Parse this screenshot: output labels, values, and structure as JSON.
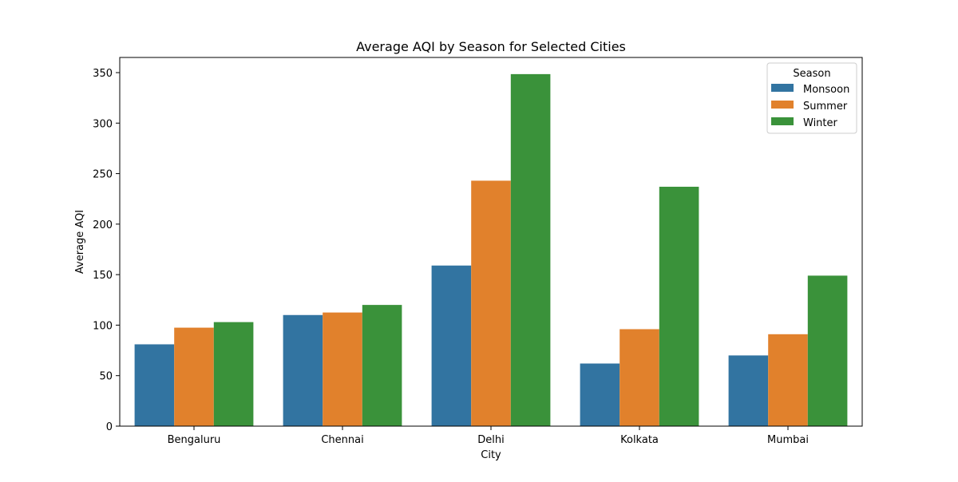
{
  "chart_data": {
    "type": "bar",
    "title": "Average AQI by Season for Selected Cities",
    "xlabel": "City",
    "ylabel": "Average AQI",
    "categories": [
      "Bengaluru",
      "Chennai",
      "Delhi",
      "Kolkata",
      "Mumbai"
    ],
    "series": [
      {
        "name": "Monsoon",
        "color": "#3274a1",
        "values": [
          81,
          110,
          159,
          62,
          70
        ]
      },
      {
        "name": "Summer",
        "color": "#e1812c",
        "values": [
          97.5,
          112.5,
          243,
          96,
          91
        ]
      },
      {
        "name": "Winter",
        "color": "#3a923a",
        "values": [
          103,
          120,
          348.5,
          237,
          149
        ]
      }
    ],
    "ylim": [
      0,
      365
    ],
    "yticks": [
      0,
      50,
      100,
      150,
      200,
      250,
      300,
      350
    ],
    "grid": false,
    "legend": {
      "title": "Season",
      "placement": "top-right"
    }
  }
}
